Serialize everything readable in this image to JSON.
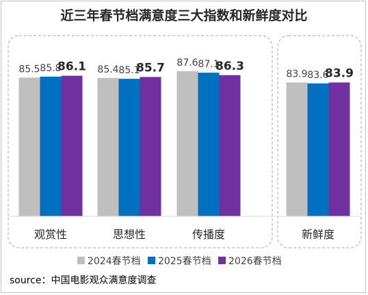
{
  "chart_data": {
    "type": "bar",
    "title": "近三年春节档满意度三大指数和新鲜度对比",
    "source": "source：中国电影观众满意度调查",
    "categories": [
      "观赏性",
      "思想性",
      "传播度",
      "新鲜度"
    ],
    "series": [
      {
        "name": "2024春节档",
        "color": "#bfbfbf",
        "values": [
          85.5,
          85.4,
          87.6,
          83.9
        ]
      },
      {
        "name": "2025春节档",
        "color": "#0070c0",
        "values": [
          85.8,
          85.1,
          87.1,
          83.6
        ]
      },
      {
        "name": "2026春节档",
        "color": "#7030a0",
        "values": [
          86.1,
          85.7,
          86.3,
          83.9
        ]
      }
    ],
    "value_labels": [
      [
        "85.5",
        "85.8",
        "86.1"
      ],
      [
        "85.4",
        "85.1",
        "85.7"
      ],
      [
        "87.6",
        "87.1",
        "86.3"
      ],
      [
        "83.9",
        "83.6",
        "83.9"
      ]
    ],
    "highlight_series": "2026春节档",
    "ylim": [
      40,
      90
    ],
    "grid": false,
    "legend": "bottom",
    "groups": [
      {
        "categories": [
          "观赏性",
          "思想性",
          "传播度"
        ]
      },
      {
        "categories": [
          "新鲜度"
        ]
      }
    ]
  }
}
